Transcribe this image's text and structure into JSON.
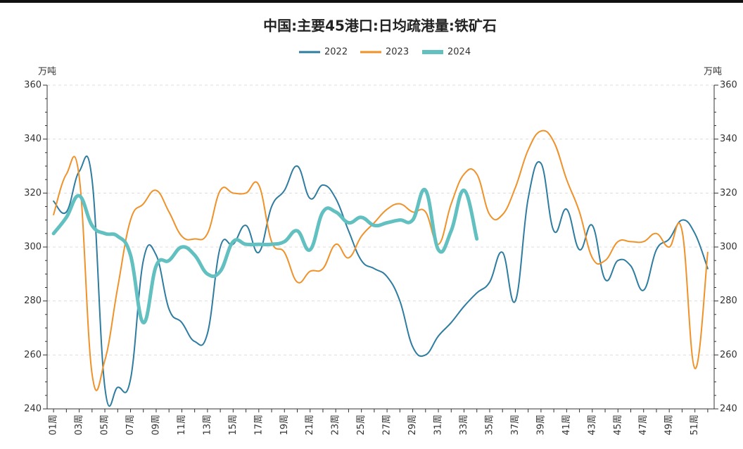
{
  "chart_data": {
    "type": "line",
    "title": "中国:主要45港口:日均疏港量:铁矿石",
    "y_label": "万吨",
    "y2_label": "万吨",
    "categories": [
      "01周",
      null,
      "03周",
      null,
      "05周",
      null,
      "07周",
      null,
      "09周",
      null,
      "11周",
      null,
      "13周",
      null,
      "15周",
      null,
      "17周",
      null,
      "19周",
      null,
      "21周",
      null,
      "23周",
      null,
      "25周",
      null,
      "27周",
      null,
      "29周",
      null,
      "31周",
      null,
      "33周",
      null,
      "35周",
      null,
      "37周",
      null,
      "39周",
      null,
      "41周",
      null,
      "43周",
      null,
      "45周",
      null,
      "47周",
      null,
      "49周",
      null,
      "51周",
      null
    ],
    "series": [
      {
        "name": "2022",
        "color": "#2e7ca0",
        "values": [
          317,
          313,
          328,
          325,
          248,
          248,
          251,
          295,
          297,
          277,
          272,
          265,
          268,
          300,
          301,
          308,
          298,
          315,
          321,
          330,
          318,
          323,
          318,
          306,
          295,
          292,
          289,
          280,
          263,
          260,
          267,
          272,
          278,
          283,
          287,
          298,
          280,
          318,
          331,
          306,
          314,
          299,
          308,
          288,
          295,
          293,
          284,
          299,
          303,
          310,
          305,
          292
        ]
      },
      {
        "name": "2023",
        "color": "#f0922a",
        "values": [
          312,
          327,
          326,
          253,
          258,
          285,
          310,
          316,
          321,
          313,
          304,
          303,
          305,
          321,
          320,
          320,
          323,
          302,
          298,
          287,
          291,
          292,
          301,
          296,
          304,
          309,
          314,
          316,
          313,
          313,
          301,
          316,
          327,
          327,
          312,
          312,
          322,
          336,
          343,
          339,
          325,
          313,
          296,
          295,
          302,
          302,
          302,
          305,
          300,
          306,
          255,
          298
        ]
      },
      {
        "name": "2024",
        "color": "#62c0c0",
        "values": [
          305,
          311,
          319,
          308,
          305,
          304,
          297,
          272,
          293,
          295,
          300,
          297,
          290,
          291,
          302,
          301,
          301,
          301,
          302,
          306,
          299,
          313,
          313,
          309,
          311,
          308,
          309,
          310,
          310,
          321,
          299,
          306,
          321,
          303,
          null,
          null,
          null,
          null,
          null,
          null,
          null,
          null,
          null,
          null,
          null,
          null,
          null,
          null,
          null,
          null,
          null,
          null
        ]
      }
    ],
    "ylim": [
      240,
      360
    ],
    "yticks": [
      240,
      260,
      280,
      300,
      320,
      340,
      360
    ],
    "y2lim": [
      240,
      360
    ],
    "y2ticks": [
      240,
      260,
      280,
      300,
      320,
      340,
      360
    ],
    "grid": true,
    "legend": "top"
  }
}
